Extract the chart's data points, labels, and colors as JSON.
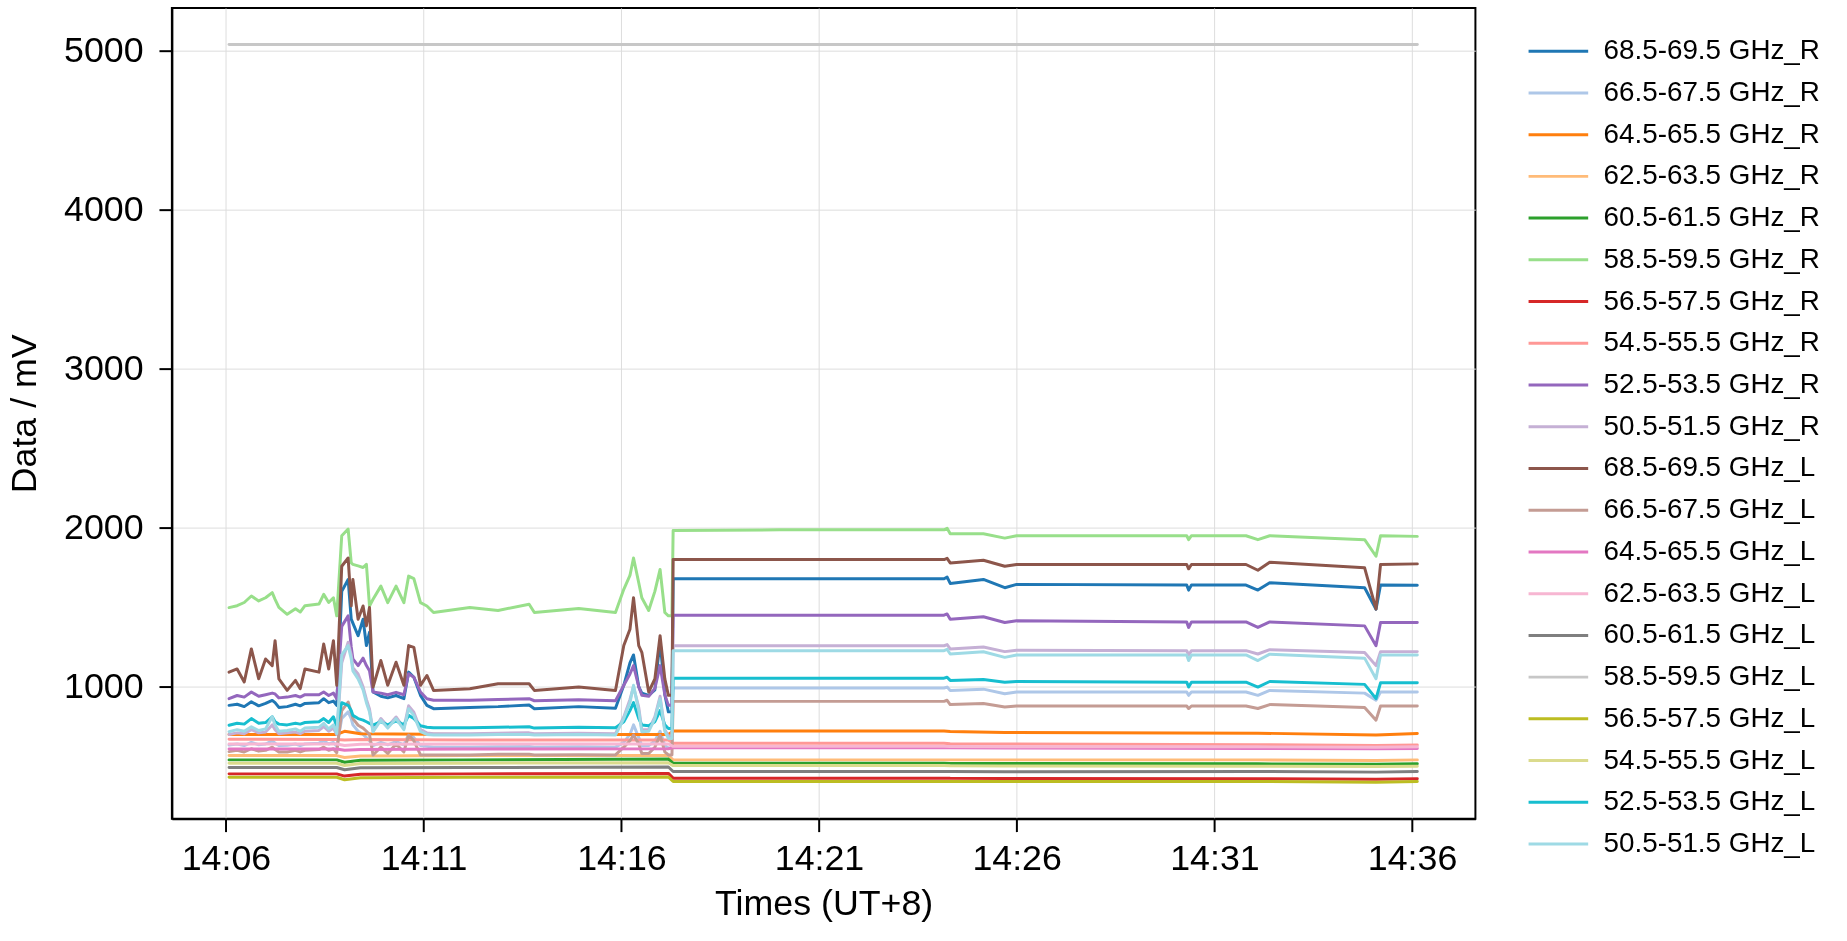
{
  "chart_data": {
    "type": "line",
    "xlabel": "Times (UT+8)",
    "ylabel": "Data / mV",
    "xlim": [
      14.0772,
      14.6267
    ],
    "ylim": [
      170,
      5270
    ],
    "xticks": [
      {
        "value": 14.1,
        "label": "14:06"
      },
      {
        "value": 14.1833,
        "label": "14:11"
      },
      {
        "value": 14.2667,
        "label": "14:16"
      },
      {
        "value": 14.35,
        "label": "14:21"
      },
      {
        "value": 14.4333,
        "label": "14:26"
      },
      {
        "value": 14.5167,
        "label": "14:31"
      },
      {
        "value": 14.6,
        "label": "14:36"
      }
    ],
    "yticks": [
      1000,
      2000,
      3000,
      4000,
      5000
    ],
    "grid": true,
    "legend": "right",
    "line_style": "solid",
    "x": [
      14.1013,
      14.1047,
      14.1077,
      14.1107,
      14.1138,
      14.1167,
      14.1195,
      14.1207,
      14.1223,
      14.1258,
      14.1293,
      14.1313,
      14.1333,
      14.1392,
      14.1412,
      14.1433,
      14.1453,
      14.1467,
      14.1488,
      14.1515,
      14.1528,
      14.1535,
      14.1557,
      14.1578,
      14.1592,
      14.1605,
      14.162,
      14.1653,
      14.1682,
      14.1717,
      14.175,
      14.177,
      14.1792,
      14.182,
      14.1847,
      14.1875,
      14.2028,
      14.2147,
      14.2278,
      14.23,
      14.2487,
      14.2642,
      14.2677,
      14.2703,
      14.2718,
      14.274,
      14.2753,
      14.2782,
      14.2808,
      14.283,
      14.285,
      14.2865,
      14.288,
      14.2885,
      14.3333,
      14.4027,
      14.404,
      14.4053,
      14.4193,
      14.4283,
      14.4333,
      14.505,
      14.5058,
      14.507,
      14.53,
      14.535,
      14.54,
      14.58,
      14.5848,
      14.5867,
      14.6022
    ],
    "series": [
      {
        "name": "68.5-69.5 GHz_R",
        "color": "#1f77b4",
        "values": [
          883,
          890,
          875,
          905,
          880,
          895,
          914,
          900,
          870,
          875,
          890,
          880,
          895,
          900,
          925,
          900,
          910,
          883,
          1600,
          1675,
          1425,
          1400,
          1321,
          1425,
          1259,
          1342,
          967,
          940,
          930,
          945,
          925,
          1092,
          1060,
          946,
          883,
          862,
          870,
          875,
          885,
          862,
          875,
          865,
          1009,
          1150,
          1200,
          1000,
          960,
          946,
          980,
          1290,
          950,
          842,
          842,
          1679,
          1679,
          1679,
          1690,
          1650,
          1675,
          1623,
          1644,
          1640,
          1608,
          1640,
          1640,
          1608,
          1654,
          1623,
          1488,
          1640,
          1638
        ]
      },
      {
        "name": "66.5-67.5 GHz_R",
        "color": "#aec7e8",
        "values": [
          633,
          640,
          630,
          650,
          635,
          640,
          660,
          645,
          630,
          632,
          640,
          630,
          640,
          645,
          660,
          640,
          650,
          625,
          800,
          842,
          800,
          760,
          720,
          700,
          680,
          660,
          630,
          650,
          635,
          655,
          635,
          700,
          680,
          630,
          625,
          620,
          620,
          622,
          625,
          620,
          622,
          620,
          650,
          700,
          760,
          680,
          630,
          630,
          660,
          720,
          630,
          615,
          615,
          992,
          992,
          992,
          998,
          977,
          985,
          956,
          967,
          967,
          946,
          967,
          967,
          946,
          977,
          960,
          915,
          967,
          967
        ]
      },
      {
        "name": "64.5-65.5 GHz_R",
        "color": "#ff7f0e",
        "x": [
          14.1013,
          14.1467,
          14.15,
          14.1567,
          14.2,
          14.2865,
          14.2885,
          14.4027,
          14.4053,
          14.4283,
          14.535,
          14.5848,
          14.6022
        ],
        "values": [
          700,
          700,
          720,
          705,
          700,
          700,
          721,
          721,
          718,
          712,
          708,
          696,
          706
        ]
      },
      {
        "name": "62.5-63.5 GHz_R",
        "color": "#ffbb78",
        "x": [
          14.1013,
          14.1467,
          14.15,
          14.1567,
          14.2,
          14.2865,
          14.2885,
          14.4027,
          14.4053,
          14.4283,
          14.535,
          14.5848,
          14.6022
        ],
        "values": [
          567,
          567,
          555,
          565,
          567,
          567,
          540,
          540,
          540,
          540,
          540,
          536,
          540
        ]
      },
      {
        "name": "60.5-61.5 GHz_R",
        "color": "#2ca02c",
        "x": [
          14.1013,
          14.1467,
          14.15,
          14.1567,
          14.2,
          14.2865,
          14.2885,
          14.4027,
          14.4053,
          14.4283,
          14.535,
          14.5848,
          14.6022
        ],
        "values": [
          540,
          540,
          525,
          538,
          540,
          545,
          519,
          519,
          518,
          517,
          515,
          512,
          515
        ]
      },
      {
        "name": "58.5-59.5 GHz_R",
        "color": "#98df8a",
        "values": [
          1498,
          1510,
          1530,
          1571,
          1540,
          1560,
          1592,
          1550,
          1500,
          1456,
          1490,
          1470,
          1510,
          1520,
          1581,
          1530,
          1560,
          1446,
          1950,
          1992,
          1779,
          1770,
          1760,
          1750,
          1770,
          1508,
          1550,
          1633,
          1529,
          1633,
          1529,
          1696,
          1680,
          1529,
          1508,
          1467,
          1498,
          1480,
          1519,
          1467,
          1492,
          1467,
          1613,
          1700,
          1810,
          1654,
          1560,
          1480,
          1600,
          1738,
          1467,
          1446,
          1446,
          1983,
          1987,
          1987,
          1997,
          1962,
          1962,
          1935,
          1950,
          1950,
          1925,
          1950,
          1950,
          1925,
          1950,
          1925,
          1821,
          1950,
          1946
        ]
      },
      {
        "name": "56.5-57.5 GHz_R",
        "color": "#d62728",
        "x": [
          14.1013,
          14.1467,
          14.15,
          14.1567,
          14.2,
          14.2865,
          14.2885,
          14.4027,
          14.4053,
          14.4283,
          14.535,
          14.5848,
          14.6022
        ],
        "values": [
          452,
          452,
          438,
          450,
          452,
          455,
          425,
          425,
          424,
          423,
          421,
          418,
          421
        ]
      },
      {
        "name": "54.5-55.5 GHz_R",
        "color": "#ff9896",
        "x": [
          14.1013,
          14.1467,
          14.15,
          14.1567,
          14.2,
          14.2865,
          14.2885,
          14.4027,
          14.4053,
          14.4283,
          14.535,
          14.5848,
          14.6022
        ],
        "values": [
          670,
          668,
          665,
          668,
          665,
          665,
          644,
          644,
          642,
          640,
          636,
          630,
          633
        ]
      },
      {
        "name": "52.5-53.5 GHz_R",
        "color": "#9467bd",
        "values": [
          925,
          945,
          935,
          967,
          940,
          950,
          960,
          955,
          930,
          935,
          945,
          935,
          950,
          950,
          967,
          945,
          960,
          925,
          1380,
          1446,
          1250,
          1175,
          1133,
          1180,
          1133,
          1100,
          967,
          960,
          950,
          965,
          950,
          1082,
          1060,
          967,
          925,
          915,
          915,
          920,
          925,
          912,
          918,
          912,
          1009,
          1080,
          1133,
          1000,
          946,
          940,
          990,
          1133,
          950,
          883,
          883,
          1450,
          1450,
          1450,
          1458,
          1425,
          1440,
          1404,
          1415,
          1408,
          1373,
          1408,
          1408,
          1373,
          1408,
          1383,
          1258,
          1404,
          1404
        ]
      },
      {
        "name": "50.5-51.5 GHz_R",
        "color": "#c5b0d5",
        "values": [
          700,
          710,
          705,
          730,
          710,
          715,
          760,
          730,
          705,
          710,
          715,
          705,
          720,
          725,
          750,
          720,
          740,
          700,
          1150,
          1280,
          1200,
          1120,
          1080,
          1000,
          920,
          860,
          720,
          800,
          750,
          810,
          740,
          880,
          840,
          730,
          710,
          705,
          705,
          708,
          710,
          705,
          708,
          705,
          810,
          920,
          1000,
          870,
          730,
          730,
          810,
          940,
          730,
          690,
          690,
          1258,
          1258,
          1258,
          1265,
          1238,
          1250,
          1221,
          1230,
          1227,
          1200,
          1227,
          1227,
          1206,
          1233,
          1215,
          1133,
          1221,
          1221
        ]
      },
      {
        "name": "68.5-69.5 GHz_L",
        "color": "#8c564b",
        "values": [
          1092,
          1112,
          1030,
          1238,
          1050,
          1175,
          1133,
          1290,
          1050,
          977,
          1040,
          988,
          1112,
          1092,
          1269,
          1112,
          1290,
          1009,
          1758,
          1810,
          1508,
          1675,
          1425,
          1508,
          1383,
          1498,
          998,
          1165,
          1009,
          1154,
          1009,
          1259,
          1248,
          1009,
          1071,
          977,
          988,
          1019,
          1019,
          977,
          998,
          977,
          1259,
          1362,
          1560,
          1259,
          1217,
          967,
          1050,
          1321,
          1050,
          946,
          946,
          1800,
          1800,
          1800,
          1808,
          1779,
          1796,
          1758,
          1769,
          1769,
          1742,
          1769,
          1769,
          1733,
          1783,
          1748,
          1488,
          1769,
          1773
        ]
      },
      {
        "name": "66.5-67.5 GHz_L",
        "color": "#c49c94",
        "values": [
          592,
          600,
          590,
          610,
          595,
          600,
          620,
          605,
          590,
          590,
          600,
          590,
          600,
          605,
          620,
          600,
          610,
          585,
          850,
          904,
          842,
          800,
          758,
          740,
          720,
          700,
          571,
          620,
          580,
          640,
          590,
          696,
          660,
          571,
          571,
          571,
          571,
          575,
          575,
          571,
          573,
          571,
          620,
          660,
          696,
          640,
          580,
          580,
          620,
          696,
          590,
          571,
          571,
          908,
          908,
          908,
          915,
          888,
          895,
          873,
          879,
          879,
          863,
          879,
          879,
          863,
          888,
          870,
          790,
          879,
          879
        ]
      },
      {
        "name": "64.5-65.5 GHz_L",
        "color": "#e377c2",
        "x": [
          14.1013,
          14.1467,
          14.15,
          14.1567,
          14.2,
          14.2865,
          14.2885,
          14.4027,
          14.4053,
          14.4283,
          14.535,
          14.5848,
          14.6022
        ],
        "values": [
          608,
          608,
          600,
          606,
          608,
          610,
          617,
          617,
          616,
          615,
          612,
          610,
          612
        ]
      },
      {
        "name": "62.5-63.5 GHz_L",
        "color": "#f7b6d2",
        "x": [
          14.1013,
          14.1467,
          14.15,
          14.1567,
          14.2,
          14.2865,
          14.2885,
          14.4027,
          14.4053,
          14.4283,
          14.535,
          14.5848,
          14.6022
        ],
        "values": [
          640,
          640,
          630,
          638,
          640,
          640,
          625,
          625,
          624,
          622,
          622,
          620,
          622
        ]
      },
      {
        "name": "60.5-61.5 GHz_L",
        "color": "#7f7f7f",
        "x": [
          14.1013,
          14.1467,
          14.15,
          14.1567,
          14.2,
          14.2865,
          14.2885,
          14.4027,
          14.4053,
          14.4283,
          14.535,
          14.5848,
          14.6022
        ],
        "values": [
          492,
          492,
          478,
          490,
          492,
          495,
          467,
          467,
          467,
          466,
          467,
          463,
          467
        ]
      },
      {
        "name": "58.5-59.5 GHz_L",
        "color": "#c7c7c7",
        "x": [
          14.1013,
          14.6022
        ],
        "values": [
          5040,
          5040
        ]
      },
      {
        "name": "56.5-57.5 GHz_L",
        "color": "#bcbd22",
        "x": [
          14.1013,
          14.1467,
          14.15,
          14.1567,
          14.2,
          14.2865,
          14.2885,
          14.4027,
          14.4053,
          14.4283,
          14.535,
          14.5848,
          14.6022
        ],
        "values": [
          431,
          431,
          415,
          428,
          431,
          433,
          404,
          404,
          404,
          404,
          404,
          400,
          404
        ]
      },
      {
        "name": "54.5-55.5 GHz_L",
        "color": "#dbdb8d",
        "x": [
          14.1013,
          14.1467,
          14.15,
          14.1567,
          14.2,
          14.2865,
          14.2885,
          14.4027,
          14.4053,
          14.4283,
          14.535,
          14.5848,
          14.6022
        ],
        "values": [
          519,
          519,
          505,
          517,
          519,
          522,
          504,
          504,
          503,
          502,
          500,
          498,
          500
        ]
      },
      {
        "name": "52.5-53.5 GHz_L",
        "color": "#17becf",
        "values": [
          758,
          770,
          765,
          800,
          770,
          775,
          811,
          780,
          765,
          760,
          770,
          765,
          775,
          780,
          800,
          775,
          811,
          750,
          900,
          883,
          850,
          820,
          800,
          790,
          780,
          770,
          758,
          780,
          760,
          785,
          760,
          820,
          800,
          755,
          745,
          742,
          742,
          745,
          748,
          740,
          745,
          742,
          779,
          850,
          900,
          800,
          760,
          755,
          780,
          850,
          760,
          737,
          737,
          1054,
          1054,
          1054,
          1060,
          1040,
          1045,
          1029,
          1033,
          1029,
          998,
          1029,
          1029,
          998,
          1033,
          1015,
          925,
          1025,
          1025
        ]
      },
      {
        "name": "50.5-51.5 GHz_L",
        "color": "#9edae5",
        "values": [
          717,
          730,
          720,
          748,
          725,
          735,
          811,
          760,
          720,
          725,
          735,
          720,
          740,
          745,
          770,
          735,
          760,
          706,
          1200,
          1259,
          1175,
          1100,
          1050,
          980,
          900,
          842,
          717,
          790,
          740,
          800,
          730,
          862,
          820,
          717,
          700,
          696,
          696,
          700,
          700,
          696,
          700,
          696,
          800,
          900,
          1009,
          850,
          717,
          720,
          800,
          925,
          720,
          675,
          675,
          1227,
          1227,
          1227,
          1235,
          1206,
          1220,
          1185,
          1200,
          1200,
          1165,
          1200,
          1200,
          1165,
          1205,
          1180,
          1050,
          1200,
          1200
        ]
      }
    ]
  }
}
